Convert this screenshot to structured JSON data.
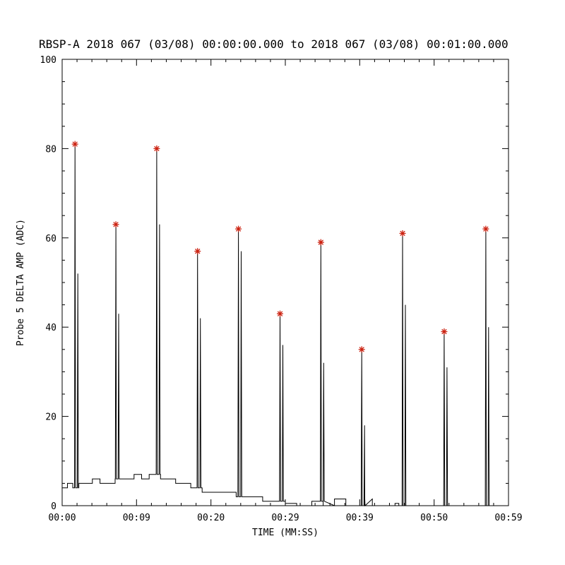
{
  "window": {
    "background": "#ffffff",
    "foreground": "#000000"
  },
  "chart_data": {
    "type": "line",
    "title": "RBSP-A 2018 067 (03/08) 00:00:00.000 to 2018 067 (03/08) 00:01:00.000",
    "xlabel": "TIME (MM:SS)",
    "ylabel": "Probe 5 DELTA AMP (ADC)",
    "x_unit": "seconds",
    "xlim": [
      0,
      59
    ],
    "ylim": [
      0,
      100
    ],
    "grid": "off",
    "legend": "none",
    "x_ticks": [
      {
        "t": 0,
        "label": "00:00"
      },
      {
        "t": 9.83,
        "label": "00:09"
      },
      {
        "t": 19.67,
        "label": "00:20"
      },
      {
        "t": 29.5,
        "label": "00:29"
      },
      {
        "t": 39.33,
        "label": "00:39"
      },
      {
        "t": 49.17,
        "label": "00:50"
      },
      {
        "t": 59,
        "label": "00:59"
      }
    ],
    "y_ticks": [
      {
        "v": 0,
        "label": "0"
      },
      {
        "v": 20,
        "label": "20"
      },
      {
        "v": 40,
        "label": "40"
      },
      {
        "v": 60,
        "label": "60"
      },
      {
        "v": 80,
        "label": "80"
      },
      {
        "v": 100,
        "label": "100"
      }
    ],
    "y_minor_step": 5,
    "line_color": "#000000",
    "marker": {
      "symbol": "asterisk",
      "color": "#cc2211"
    },
    "peaks": [
      {
        "t": 1.7,
        "value": 81,
        "secondary": 52
      },
      {
        "t": 7.1,
        "value": 63,
        "secondary": 43
      },
      {
        "t": 12.5,
        "value": 80,
        "secondary": 63
      },
      {
        "t": 17.9,
        "value": 57,
        "secondary": 42
      },
      {
        "t": 23.3,
        "value": 62,
        "secondary": 57
      },
      {
        "t": 28.8,
        "value": 43,
        "secondary": 36
      },
      {
        "t": 34.2,
        "value": 59,
        "secondary": 32
      },
      {
        "t": 39.6,
        "value": 35,
        "secondary": 18
      },
      {
        "t": 45.0,
        "value": 61,
        "secondary": 45
      },
      {
        "t": 50.5,
        "value": 39,
        "secondary": 31
      },
      {
        "t": 56.0,
        "value": 62,
        "secondary": 40
      }
    ],
    "baseline_steps": [
      [
        0,
        4
      ],
      [
        0.7,
        5
      ],
      [
        1.4,
        4
      ],
      [
        2.2,
        5
      ],
      [
        4,
        6
      ],
      [
        5,
        5
      ],
      [
        7,
        6
      ],
      [
        8.5,
        6
      ],
      [
        9.5,
        7
      ],
      [
        10.5,
        6
      ],
      [
        11.5,
        7
      ],
      [
        13,
        6
      ],
      [
        15,
        5
      ],
      [
        17,
        4
      ],
      [
        18.5,
        3
      ],
      [
        21,
        3
      ],
      [
        23,
        2
      ],
      [
        25,
        2
      ],
      [
        26.5,
        1
      ],
      [
        28,
        1
      ],
      [
        29.5,
        0.5
      ],
      [
        31,
        0
      ],
      [
        33,
        1
      ],
      [
        34.5,
        0
      ],
      [
        36,
        1.5
      ],
      [
        37.5,
        0
      ],
      [
        40,
        1.5
      ],
      [
        41,
        0
      ],
      [
        44,
        0.5
      ],
      [
        44.5,
        0
      ],
      [
        59,
        0
      ]
    ]
  }
}
